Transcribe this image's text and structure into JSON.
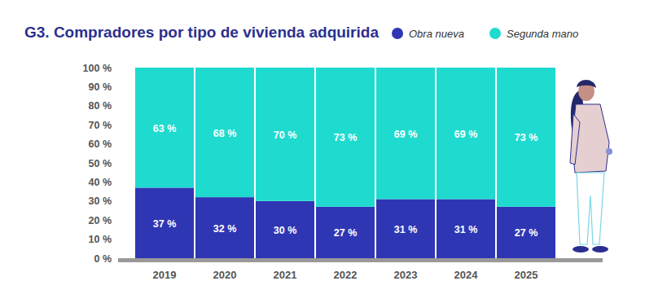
{
  "chart_data": {
    "type": "bar",
    "title": "G3. Compradores por tipo de vivienda adquirida",
    "categories": [
      "2019",
      "2020",
      "2021",
      "2022",
      "2023",
      "2024",
      "2025"
    ],
    "series": [
      {
        "name": "Obra nueva",
        "color": "#2f36b4",
        "values": [
          37,
          32,
          30,
          27,
          31,
          31,
          27
        ],
        "value_labels": [
          "37 %",
          "32 %",
          "30 %",
          "27 %",
          "31 %",
          "31 %",
          "27 %"
        ]
      },
      {
        "name": "Segunda mano",
        "color": "#1fdbcf",
        "values": [
          63,
          68,
          70,
          73,
          69,
          69,
          73
        ],
        "value_labels": [
          "63 %",
          "68 %",
          "70 %",
          "73 %",
          "69 %",
          "69 %",
          "73 %"
        ]
      }
    ],
    "ylim": [
      0,
      100
    ],
    "yticks": [
      {
        "value": 0,
        "label": "0 %"
      },
      {
        "value": 10,
        "label": "10 %"
      },
      {
        "value": 20,
        "label": "20 %"
      },
      {
        "value": 30,
        "label": "30 %"
      },
      {
        "value": 40,
        "label": "40 %"
      },
      {
        "value": 50,
        "label": "50 %"
      },
      {
        "value": 60,
        "label": "60 %"
      },
      {
        "value": 70,
        "label": "70 %"
      },
      {
        "value": 80,
        "label": "80 %"
      },
      {
        "value": 90,
        "label": "90 %"
      },
      {
        "value": 100,
        "label": "100 %"
      }
    ],
    "stacked": true,
    "data_labels": true,
    "grid": false,
    "legend": "top-right"
  }
}
